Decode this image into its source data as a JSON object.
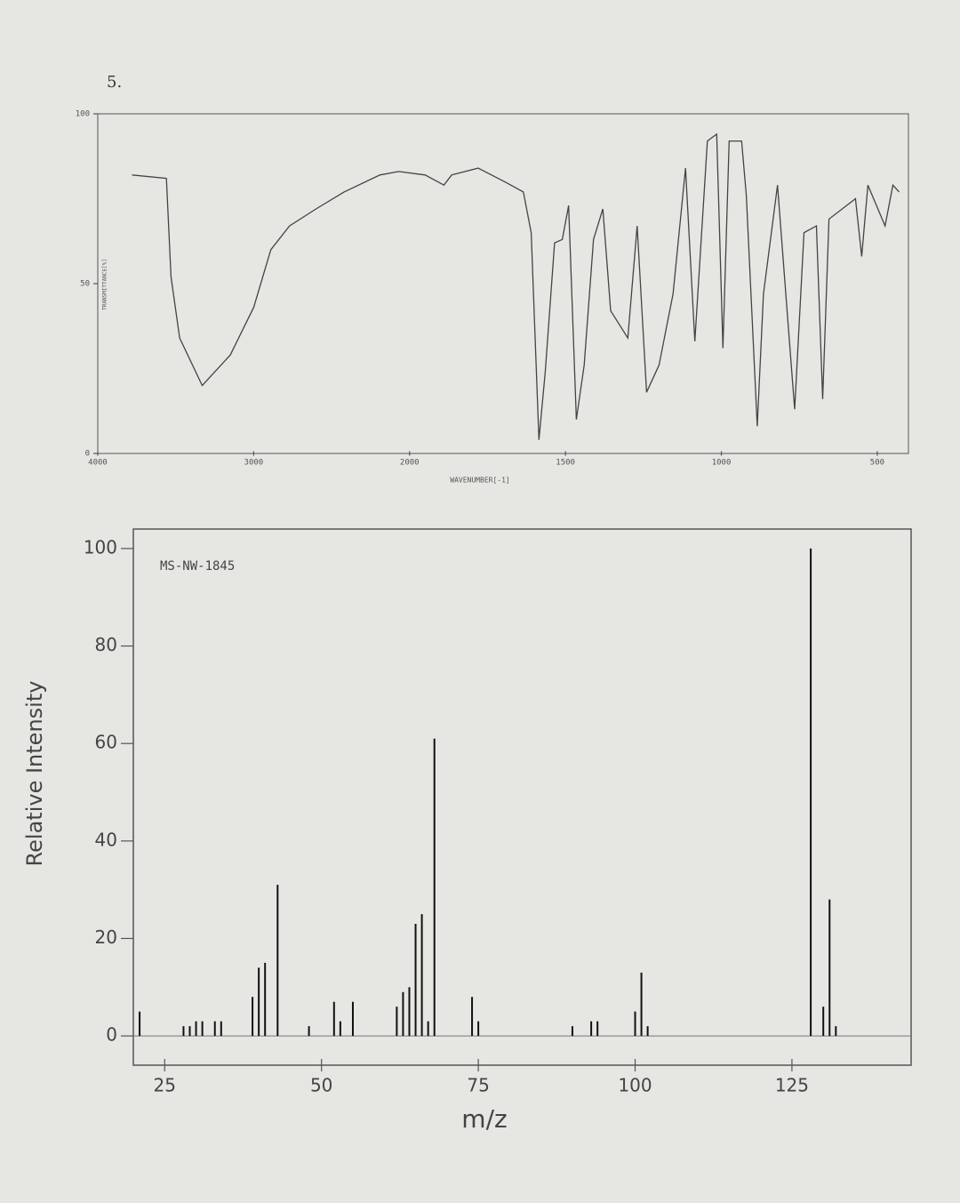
{
  "page_label": "5.",
  "chart_data": [
    {
      "type": "line",
      "x_label": "WAVENUMBER[-1]",
      "y_label": "TRANSMITTANCE[%]",
      "color": "#444444",
      "x": [
        3780,
        3560,
        3530,
        3475,
        3330,
        3150,
        3000,
        2890,
        2770,
        2600,
        2420,
        2190,
        2070,
        1950,
        1890,
        1865,
        1780,
        1695,
        1635,
        1610,
        1585,
        1565,
        1535,
        1510,
        1490,
        1465,
        1440,
        1410,
        1380,
        1355,
        1300,
        1270,
        1240,
        1200,
        1155,
        1115,
        1085,
        1045,
        1015,
        995,
        975,
        935,
        920,
        885,
        865,
        820,
        780,
        765,
        735,
        695,
        675,
        655,
        570,
        550,
        530,
        475,
        450,
        430
      ],
      "values": [
        82,
        81,
        52,
        34,
        20,
        29,
        43,
        60,
        67,
        72,
        77,
        82,
        83,
        82,
        79,
        82,
        84,
        80,
        77,
        65,
        4,
        24,
        62,
        63,
        73,
        10,
        26,
        63,
        72,
        42,
        34,
        67,
        18,
        26,
        47,
        84,
        33,
        92,
        94,
        31,
        92,
        92,
        76,
        8,
        47,
        79,
        31,
        13,
        65,
        67,
        16,
        69,
        75,
        58,
        79,
        67,
        79,
        77
      ],
      "xlim": [
        4000,
        400
      ],
      "xticks": [
        4000,
        3000,
        2000,
        1500,
        1000,
        500
      ],
      "ylim": [
        0,
        100
      ],
      "yticks": [
        0,
        50,
        100
      ]
    },
    {
      "type": "bar",
      "title": "MS-NW-1845",
      "x_label": "m/z",
      "y_label": "Relative Intensity",
      "color": "#111111",
      "x": [
        21,
        28,
        29,
        30,
        31,
        33,
        34,
        39,
        40,
        41,
        43,
        48,
        52,
        53,
        55,
        62,
        63,
        64,
        65,
        66,
        67,
        68,
        74,
        75,
        90,
        93,
        94,
        100,
        101,
        102,
        128,
        130,
        131,
        132
      ],
      "values": [
        5,
        2,
        2,
        3,
        3,
        3,
        3,
        8,
        14,
        15,
        31,
        2,
        7,
        3,
        7,
        6,
        9,
        10,
        23,
        25,
        3,
        61,
        8,
        3,
        2,
        3,
        3,
        5,
        13,
        2,
        100,
        6,
        28,
        2
      ],
      "xlim": [
        20,
        144
      ],
      "xticks": [
        25,
        50,
        75,
        100,
        125
      ],
      "ylim": [
        -6,
        104
      ],
      "yticks": [
        0,
        20,
        40,
        60,
        80,
        100
      ]
    }
  ]
}
